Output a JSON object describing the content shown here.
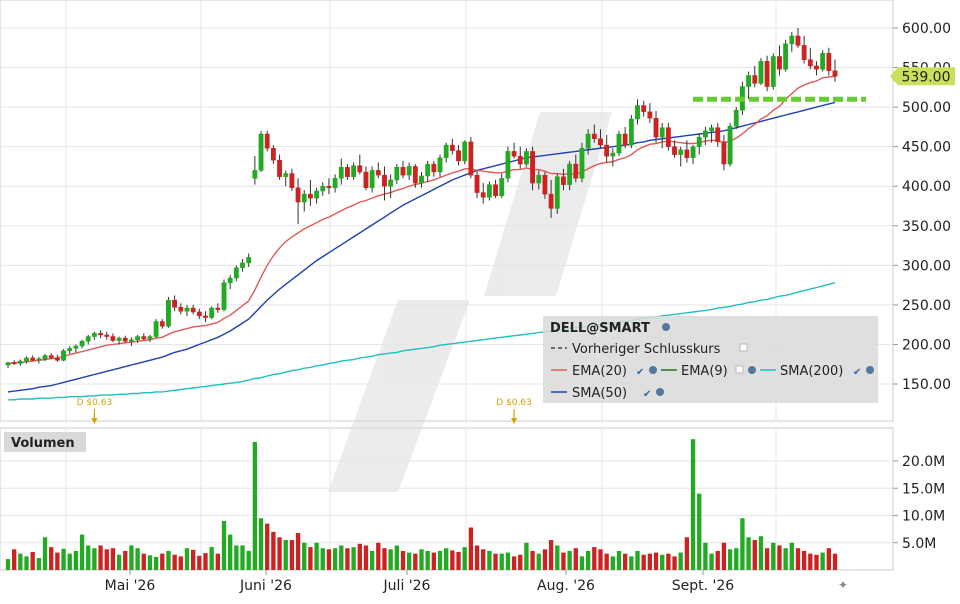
{
  "chart_data": [
    {
      "type": "candlestick",
      "symbol": "DELL@SMART",
      "ylim": [
        120,
        620
      ],
      "y_ticks": [
        "600.00",
        "550.00",
        "500.00",
        "450.00",
        "400.00",
        "350.00",
        "300.00",
        "250.00",
        "200.00",
        "150.00"
      ],
      "y_tick_values": [
        600,
        550,
        500,
        450,
        400,
        350,
        300,
        250,
        200,
        150
      ],
      "x_labels": [
        "Mai '26",
        "Juni '26",
        "Juli '26",
        "Aug. '26",
        "Sept. '26"
      ],
      "last_price_label": "539.00",
      "last_price": 539,
      "legend": {
        "title": "DELL@SMART",
        "items": [
          {
            "label": "Vorheriger Schlusskurs",
            "color": "#444444",
            "style": "dashed"
          },
          {
            "label": "EMA(20)",
            "color": "#e05a5a"
          },
          {
            "label": "EMA(9)",
            "color": "#2f6b2f"
          },
          {
            "label": "SMA(200)",
            "color": "#20c0c0"
          },
          {
            "label": "SMA(50)",
            "color": "#2040b0"
          }
        ]
      },
      "dividends": [
        {
          "label": "D $0.63",
          "bar_index": 14
        },
        {
          "label": "D $0.63",
          "bar_index": 82
        }
      ],
      "colors": {
        "up": "#22aa22",
        "down": "#cc2222",
        "ema20": "#e05a5a",
        "sma50": "#2040b0",
        "sma200": "#20c0c0",
        "prev_close": "#66cc33",
        "price_tag": "#c9e05a"
      },
      "ohlc": [
        [
          174,
          178,
          170,
          177
        ],
        [
          177,
          180,
          174,
          176
        ],
        [
          176,
          181,
          173,
          179
        ],
        [
          179,
          185,
          176,
          183
        ],
        [
          183,
          186,
          179,
          180
        ],
        [
          180,
          184,
          176,
          182
        ],
        [
          182,
          188,
          179,
          186
        ],
        [
          186,
          189,
          182,
          183
        ],
        [
          183,
          187,
          178,
          180
        ],
        [
          180,
          194,
          179,
          192
        ],
        [
          192,
          198,
          188,
          195
        ],
        [
          195,
          200,
          190,
          198
        ],
        [
          198,
          206,
          195,
          204
        ],
        [
          204,
          212,
          200,
          210
        ],
        [
          210,
          216,
          206,
          214
        ],
        [
          214,
          218,
          208,
          212
        ],
        [
          212,
          216,
          206,
          210
        ],
        [
          210,
          214,
          203,
          205
        ],
        [
          205,
          210,
          200,
          208
        ],
        [
          208,
          211,
          202,
          204
        ],
        [
          204,
          209,
          198,
          206
        ],
        [
          206,
          212,
          202,
          210
        ],
        [
          210,
          214,
          205,
          207
        ],
        [
          207,
          212,
          203,
          210
        ],
        [
          210,
          232,
          208,
          229
        ],
        [
          229,
          232,
          220,
          223
        ],
        [
          223,
          260,
          221,
          256
        ],
        [
          256,
          262,
          242,
          247
        ],
        [
          247,
          252,
          238,
          242
        ],
        [
          242,
          250,
          236,
          246
        ],
        [
          246,
          250,
          238,
          241
        ],
        [
          241,
          245,
          232,
          236
        ],
        [
          236,
          242,
          228,
          234
        ],
        [
          234,
          248,
          232,
          246
        ],
        [
          246,
          252,
          240,
          244
        ],
        [
          244,
          282,
          242,
          278
        ],
        [
          278,
          288,
          270,
          284
        ],
        [
          284,
          300,
          280,
          297
        ],
        [
          297,
          308,
          292,
          303
        ],
        [
          303,
          315,
          298,
          310
        ],
        [
          410,
          438,
          402,
          420
        ],
        [
          420,
          470,
          418,
          466
        ],
        [
          466,
          470,
          444,
          448
        ],
        [
          448,
          452,
          428,
          433
        ],
        [
          433,
          440,
          408,
          412
        ],
        [
          412,
          420,
          400,
          416
        ],
        [
          416,
          422,
          394,
          398
        ],
        [
          398,
          410,
          352,
          380
        ],
        [
          380,
          395,
          368,
          390
        ],
        [
          390,
          408,
          375,
          385
        ],
        [
          385,
          398,
          378,
          394
        ],
        [
          394,
          405,
          388,
          400
        ],
        [
          400,
          410,
          390,
          398
        ],
        [
          398,
          415,
          392,
          410
        ],
        [
          410,
          435,
          402,
          424
        ],
        [
          424,
          428,
          408,
          412
        ],
        [
          412,
          430,
          408,
          426
        ],
        [
          426,
          440,
          415,
          418
        ],
        [
          418,
          425,
          395,
          398
        ],
        [
          398,
          425,
          392,
          420
        ],
        [
          420,
          430,
          410,
          414
        ],
        [
          414,
          425,
          382,
          400
        ],
        [
          400,
          415,
          385,
          408
        ],
        [
          408,
          428,
          403,
          424
        ],
        [
          424,
          432,
          410,
          414
        ],
        [
          414,
          430,
          408,
          425
        ],
        [
          425,
          428,
          398,
          404
        ],
        [
          404,
          418,
          398,
          413
        ],
        [
          413,
          432,
          405,
          428
        ],
        [
          428,
          432,
          412,
          418
        ],
        [
          418,
          440,
          412,
          436
        ],
        [
          436,
          455,
          430,
          452
        ],
        [
          452,
          460,
          440,
          445
        ],
        [
          445,
          452,
          426,
          432
        ],
        [
          432,
          458,
          428,
          456
        ],
        [
          456,
          462,
          410,
          414
        ],
        [
          414,
          420,
          385,
          392
        ],
        [
          392,
          404,
          378,
          386
        ],
        [
          386,
          406,
          382,
          402
        ],
        [
          402,
          408,
          385,
          388
        ],
        [
          388,
          416,
          385,
          410
        ],
        [
          410,
          450,
          405,
          444
        ],
        [
          444,
          455,
          435,
          438
        ],
        [
          438,
          450,
          422,
          428
        ],
        [
          428,
          448,
          425,
          444
        ],
        [
          444,
          450,
          395,
          404
        ],
        [
          404,
          420,
          396,
          414
        ],
        [
          414,
          418,
          384,
          390
        ],
        [
          390,
          408,
          360,
          372
        ],
        [
          372,
          416,
          365,
          412
        ],
        [
          412,
          422,
          395,
          402
        ],
        [
          402,
          432,
          395,
          428
        ],
        [
          428,
          440,
          405,
          410
        ],
        [
          410,
          455,
          405,
          448
        ],
        [
          448,
          472,
          440,
          466
        ],
        [
          466,
          478,
          455,
          460
        ],
        [
          460,
          472,
          448,
          452
        ],
        [
          452,
          465,
          430,
          438
        ],
        [
          438,
          448,
          425,
          442
        ],
        [
          442,
          470,
          438,
          466
        ],
        [
          466,
          475,
          448,
          452
        ],
        [
          452,
          490,
          448,
          485
        ],
        [
          485,
          510,
          478,
          502
        ],
        [
          502,
          508,
          488,
          494
        ],
        [
          494,
          505,
          480,
          486
        ],
        [
          486,
          495,
          455,
          462
        ],
        [
          462,
          480,
          448,
          474
        ],
        [
          474,
          480,
          445,
          450
        ],
        [
          450,
          458,
          436,
          440
        ],
        [
          440,
          450,
          425,
          446
        ],
        [
          446,
          458,
          430,
          436
        ],
        [
          436,
          452,
          428,
          450
        ],
        [
          450,
          466,
          440,
          462
        ],
        [
          462,
          475,
          452,
          470
        ],
        [
          470,
          478,
          455,
          474
        ],
        [
          474,
          480,
          450,
          456
        ],
        [
          456,
          465,
          420,
          428
        ],
        [
          428,
          480,
          425,
          476
        ],
        [
          476,
          500,
          472,
          496
        ],
        [
          496,
          532,
          490,
          526
        ],
        [
          526,
          545,
          510,
          540
        ],
        [
          540,
          552,
          525,
          530
        ],
        [
          530,
          562,
          528,
          558
        ],
        [
          558,
          565,
          520,
          526
        ],
        [
          526,
          568,
          522,
          564
        ],
        [
          564,
          578,
          540,
          548
        ],
        [
          548,
          585,
          545,
          580
        ],
        [
          580,
          595,
          570,
          590
        ],
        [
          590,
          600,
          575,
          578
        ],
        [
          578,
          590,
          555,
          560
        ],
        [
          560,
          575,
          548,
          552
        ],
        [
          552,
          558,
          540,
          548
        ],
        [
          548,
          572,
          545,
          568
        ],
        [
          568,
          575,
          540,
          546
        ],
        [
          546,
          560,
          532,
          539
        ]
      ],
      "ema20": [
        176,
        177,
        177,
        178,
        179,
        180,
        181,
        182,
        183,
        185,
        187,
        189,
        191,
        193,
        195,
        197,
        199,
        200,
        201,
        202,
        203,
        204,
        205,
        206,
        208,
        209,
        213,
        216,
        218,
        220,
        222,
        223,
        224,
        226,
        228,
        233,
        237,
        243,
        249,
        255,
        269,
        285,
        300,
        312,
        322,
        330,
        336,
        341,
        346,
        350,
        354,
        358,
        361,
        365,
        369,
        373,
        376,
        380,
        382,
        385,
        388,
        390,
        392,
        395,
        397,
        400,
        402,
        404,
        406,
        408,
        411,
        414,
        417,
        419,
        422,
        422,
        420,
        419,
        418,
        417,
        417,
        419,
        421,
        421,
        423,
        421,
        421,
        419,
        416,
        416,
        415,
        416,
        415,
        418,
        422,
        426,
        429,
        430,
        431,
        434,
        436,
        440,
        446,
        450,
        453,
        454,
        456,
        457,
        456,
        455,
        454,
        454,
        455,
        457,
        458,
        458,
        455,
        457,
        461,
        466,
        473,
        478,
        485,
        489,
        496,
        501,
        510,
        517,
        524,
        528,
        531,
        533,
        537,
        538,
        539
      ],
      "sma50": [
        140,
        141,
        142,
        143,
        144,
        146,
        147,
        148,
        150,
        152,
        154,
        156,
        158,
        160,
        162,
        164,
        166,
        168,
        170,
        172,
        174,
        176,
        178,
        180,
        182,
        184,
        187,
        190,
        192,
        194,
        197,
        200,
        203,
        206,
        209,
        213,
        217,
        222,
        227,
        232,
        240,
        248,
        256,
        263,
        270,
        276,
        282,
        288,
        294,
        300,
        306,
        311,
        316,
        321,
        326,
        331,
        336,
        341,
        346,
        351,
        356,
        361,
        366,
        371,
        376,
        380,
        384,
        388,
        392,
        396,
        400,
        404,
        408,
        411,
        414,
        417,
        420,
        422,
        424,
        426,
        428,
        430,
        432,
        434,
        436,
        437,
        438,
        439,
        440,
        441,
        442,
        443,
        444,
        445,
        446,
        447,
        448,
        449,
        450,
        451,
        452,
        453,
        455,
        456,
        458,
        459,
        460,
        461,
        462,
        463,
        464,
        465,
        466,
        467,
        468,
        469,
        470,
        472,
        474,
        476,
        478,
        480,
        482,
        484,
        486,
        488,
        490,
        492,
        494,
        496,
        498,
        500,
        502,
        504,
        506
      ],
      "sma200": [
        130,
        130,
        131,
        131,
        131,
        132,
        132,
        132,
        133,
        133,
        134,
        134,
        134,
        135,
        135,
        136,
        136,
        136,
        137,
        137,
        138,
        138,
        139,
        139,
        140,
        140,
        141,
        142,
        143,
        144,
        145,
        146,
        147,
        148,
        149,
        150,
        151,
        152,
        153,
        155,
        157,
        158,
        160,
        162,
        163,
        165,
        167,
        168,
        170,
        171,
        173,
        174,
        176,
        177,
        179,
        180,
        181,
        183,
        184,
        185,
        187,
        188,
        189,
        190,
        192,
        193,
        194,
        195,
        196,
        197,
        199,
        200,
        201,
        202,
        203,
        204,
        205,
        206,
        207,
        208,
        209,
        210,
        211,
        212,
        213,
        214,
        215,
        216,
        217,
        218,
        219,
        220,
        221,
        222,
        223,
        224,
        225,
        226,
        227,
        228,
        229,
        230,
        232,
        233,
        234,
        235,
        236,
        237,
        238,
        239,
        240,
        241,
        242,
        243,
        244,
        246,
        247,
        248,
        250,
        251,
        253,
        254,
        256,
        257,
        259,
        261,
        262,
        264,
        266,
        268,
        270,
        272,
        274,
        276,
        278
      ],
      "prev_close": 510
    },
    {
      "type": "bar",
      "title": "Volumen",
      "ylim": [
        0,
        25000000
      ],
      "y_ticks": [
        "20.0M",
        "15.0M",
        "10.0M",
        "5.0M"
      ],
      "y_tick_values": [
        20000000,
        15000000,
        10000000,
        5000000
      ],
      "volumes": [
        2.0,
        3.8,
        3.0,
        2.5,
        3.3,
        2.2,
        6.0,
        4.2,
        3.2,
        3.9,
        3.0,
        3.5,
        6.5,
        4.5,
        4.0,
        4.5,
        3.8,
        4.0,
        2.8,
        3.5,
        4.5,
        4.0,
        3.0,
        2.7,
        2.4,
        3.0,
        3.5,
        2.8,
        2.5,
        4.0,
        3.7,
        2.6,
        3.1,
        4.2,
        3.0,
        9.0,
        6.5,
        4.5,
        4.5,
        3.5,
        23.5,
        9.5,
        8.5,
        7.0,
        6.0,
        5.5,
        5.5,
        6.8,
        5.0,
        4.2,
        5.0,
        4.0,
        3.8,
        4.0,
        4.5,
        4.0,
        4.2,
        4.8,
        4.5,
        3.5,
        5.0,
        4.0,
        3.8,
        4.5,
        3.5,
        3.2,
        3.0,
        3.8,
        3.5,
        3.2,
        3.5,
        4.0,
        3.6,
        3.3,
        4.2,
        7.8,
        4.5,
        3.8,
        3.5,
        3.0,
        3.0,
        3.2,
        2.5,
        2.8,
        5.0,
        3.5,
        3.0,
        3.8,
        5.5,
        4.5,
        3.2,
        3.5,
        4.0,
        2.5,
        3.5,
        4.2,
        3.8,
        3.0,
        2.5,
        3.5,
        3.0,
        2.5,
        3.5,
        2.8,
        3.0,
        3.2,
        2.8,
        3.0,
        2.5,
        3.2,
        6.0,
        24.0,
        14.0,
        5.0,
        3.0,
        3.5,
        5.0,
        3.8,
        4.0,
        9.5,
        6.0,
        5.5,
        6.2,
        4.0,
        5.0,
        4.5,
        4.0,
        5.0,
        4.0,
        3.5,
        3.0,
        2.8,
        3.2,
        4.0,
        3.0
      ],
      "volume_unit": "M"
    }
  ]
}
